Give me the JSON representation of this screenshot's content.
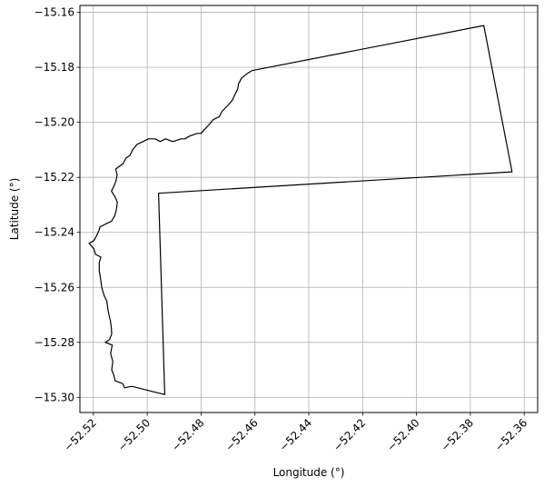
{
  "chart_data": {
    "type": "line",
    "title": "",
    "xlabel": "Longitude (°)",
    "ylabel": "Latitude (°)",
    "xlim": [
      -52.525,
      -52.355
    ],
    "ylim": [
      -15.3055,
      -15.1575
    ],
    "grid": true,
    "x_ticks": [
      -52.52,
      -52.5,
      -52.48,
      -52.46,
      -52.44,
      -52.42,
      -52.4,
      -52.38,
      -52.36
    ],
    "x_tick_labels": [
      "−52.52",
      "−52.50",
      "−52.48",
      "−52.46",
      "−52.44",
      "−52.42",
      "−52.40",
      "−52.38",
      "−52.36"
    ],
    "y_ticks": [
      -15.16,
      -15.18,
      -15.2,
      -15.22,
      -15.24,
      -15.26,
      -15.28,
      -15.3
    ],
    "y_tick_labels": [
      "−15.16",
      "−15.18",
      "−15.20",
      "−15.22",
      "−15.24",
      "−15.26",
      "−15.28",
      "−15.30"
    ],
    "series": [
      {
        "color": "#000000",
        "points": [
          [
            -52.4611,
            -15.1812
          ],
          [
            -52.375,
            -15.1648
          ],
          [
            -52.3645,
            -15.218
          ],
          [
            -52.4958,
            -15.2258
          ],
          [
            -52.4935,
            -15.299
          ],
          [
            -52.5057,
            -15.296
          ],
          [
            -52.5084,
            -15.2965
          ],
          [
            -52.5091,
            -15.295
          ],
          [
            -52.5119,
            -15.294
          ],
          [
            -52.5124,
            -15.292
          ],
          [
            -52.5132,
            -15.29
          ],
          [
            -52.5128,
            -15.287
          ],
          [
            -52.5136,
            -15.284
          ],
          [
            -52.513,
            -15.281
          ],
          [
            -52.5156,
            -15.28
          ],
          [
            -52.514,
            -15.279
          ],
          [
            -52.5132,
            -15.277
          ],
          [
            -52.5133,
            -15.275
          ],
          [
            -52.5137,
            -15.272
          ],
          [
            -52.5142,
            -15.27
          ],
          [
            -52.5146,
            -15.268
          ],
          [
            -52.515,
            -15.265
          ],
          [
            -52.516,
            -15.263
          ],
          [
            -52.5169,
            -15.26
          ],
          [
            -52.5173,
            -15.257
          ],
          [
            -52.5178,
            -15.254
          ],
          [
            -52.5178,
            -15.251
          ],
          [
            -52.5172,
            -15.249
          ],
          [
            -52.5192,
            -15.248
          ],
          [
            -52.5198,
            -15.246
          ],
          [
            -52.5216,
            -15.244
          ],
          [
            -52.5198,
            -15.243
          ],
          [
            -52.5187,
            -15.241
          ],
          [
            -52.5178,
            -15.239
          ],
          [
            -52.5175,
            -15.238
          ],
          [
            -52.5155,
            -15.237
          ],
          [
            -52.5133,
            -15.236
          ],
          [
            -52.5121,
            -15.234
          ],
          [
            -52.5115,
            -15.232
          ],
          [
            -52.5111,
            -15.229
          ],
          [
            -52.512,
            -15.227
          ],
          [
            -52.5133,
            -15.225
          ],
          [
            -52.5123,
            -15.223
          ],
          [
            -52.5115,
            -15.221
          ],
          [
            -52.5112,
            -15.219
          ],
          [
            -52.5117,
            -15.217
          ],
          [
            -52.5104,
            -15.216
          ],
          [
            -52.509,
            -15.215
          ],
          [
            -52.5079,
            -15.213
          ],
          [
            -52.5064,
            -15.212
          ],
          [
            -52.5054,
            -15.21
          ],
          [
            -52.5038,
            -15.208
          ],
          [
            -52.5016,
            -15.207
          ],
          [
            -52.4995,
            -15.206
          ],
          [
            -52.497,
            -15.206
          ],
          [
            -52.4952,
            -15.207
          ],
          [
            -52.4932,
            -15.206
          ],
          [
            -52.4905,
            -15.207
          ],
          [
            -52.4874,
            -15.206
          ],
          [
            -52.486,
            -15.206
          ],
          [
            -52.4843,
            -15.205
          ],
          [
            -52.4815,
            -15.204
          ],
          [
            -52.48,
            -15.204
          ],
          [
            -52.4791,
            -15.203
          ],
          [
            -52.4772,
            -15.201
          ],
          [
            -52.4755,
            -15.199
          ],
          [
            -52.4733,
            -15.198
          ],
          [
            -52.4722,
            -15.196
          ],
          [
            -52.4702,
            -15.194
          ],
          [
            -52.4684,
            -15.192
          ],
          [
            -52.4675,
            -15.19
          ],
          [
            -52.4664,
            -15.188
          ],
          [
            -52.4661,
            -15.186
          ],
          [
            -52.465,
            -15.184
          ],
          [
            -52.4638,
            -15.183
          ],
          [
            -52.4625,
            -15.182
          ],
          [
            -52.4611,
            -15.1812
          ]
        ]
      }
    ]
  }
}
